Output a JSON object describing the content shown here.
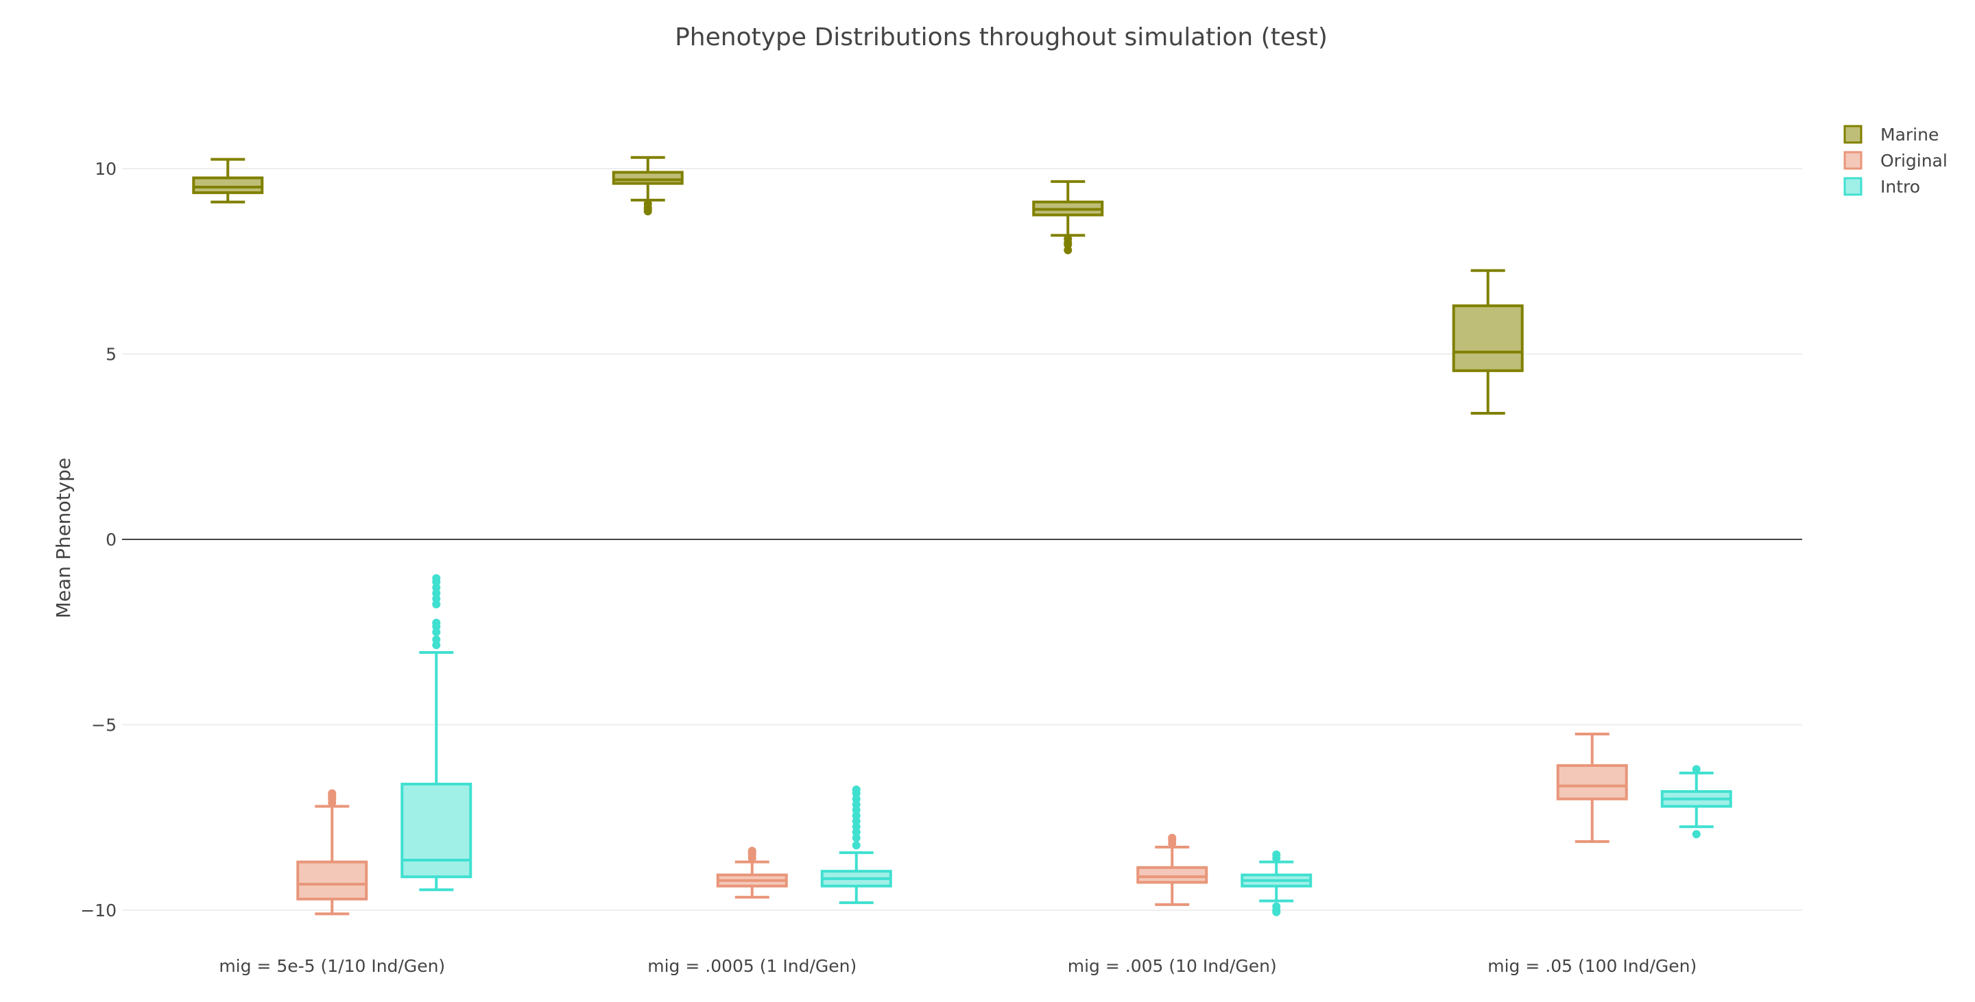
{
  "chart_data": {
    "type": "box",
    "title": "Phenotype Distributions throughout simulation (test)",
    "xlabel": "",
    "ylabel": "Mean Phenotype",
    "ylim": [
      -11,
      12
    ],
    "yticks": [
      10,
      5,
      0,
      -5,
      -10
    ],
    "ytick_labels": [
      "10",
      "5",
      "0",
      "−5",
      "−10"
    ],
    "grid": true,
    "zero_line": true,
    "legend_position": "top-right",
    "categories": [
      "mig = 5e-5 (1/10 Ind/Gen)",
      "mig = .0005 (1 Ind/Gen)",
      "mig = .005 (10 Ind/Gen)",
      "mig = .05 (100 Ind/Gen)"
    ],
    "series": [
      {
        "name": "Marine",
        "color": "#808000",
        "fill": "#bebe78",
        "boxes": [
          {
            "min": 9.1,
            "q1": 9.35,
            "median": 9.5,
            "q3": 9.75,
            "max": 10.25,
            "outliers": []
          },
          {
            "min": 9.15,
            "q1": 9.6,
            "median": 9.7,
            "q3": 9.9,
            "max": 10.3,
            "outliers": [
              9.05,
              8.95,
              8.9,
              8.85
            ]
          },
          {
            "min": 8.2,
            "q1": 8.75,
            "median": 8.9,
            "q3": 9.1,
            "max": 9.65,
            "outliers": [
              8.1,
              8.0,
              7.95,
              7.8
            ]
          },
          {
            "min": 3.4,
            "q1": 4.55,
            "median": 5.05,
            "q3": 6.3,
            "max": 7.25,
            "outliers": []
          }
        ]
      },
      {
        "name": "Original",
        "color": "#e9967a",
        "fill": "#f4c8b9",
        "boxes": [
          {
            "min": -10.1,
            "q1": -9.7,
            "median": -9.3,
            "q3": -8.7,
            "max": -7.2,
            "outliers": [
              -7.1,
              -7.0,
              -6.95,
              -6.9,
              -6.85
            ]
          },
          {
            "min": -9.65,
            "q1": -9.35,
            "median": -9.2,
            "q3": -9.05,
            "max": -8.7,
            "outliers": [
              -8.6,
              -8.5,
              -8.45,
              -8.4
            ]
          },
          {
            "min": -9.85,
            "q1": -9.25,
            "median": -9.1,
            "q3": -8.85,
            "max": -8.3,
            "outliers": [
              -8.2,
              -8.1,
              -8.05
            ]
          },
          {
            "min": -8.15,
            "q1": -7.0,
            "median": -6.65,
            "q3": -6.1,
            "max": -5.25,
            "outliers": []
          }
        ]
      },
      {
        "name": "Intro",
        "color": "#40e0d0",
        "fill": "#a0f0e8",
        "boxes": [
          {
            "min": -9.45,
            "q1": -9.1,
            "median": -8.65,
            "q3": -6.6,
            "max": -3.05,
            "outliers": [
              -2.85,
              -2.7,
              -2.5,
              -2.35,
              -2.25,
              -1.75,
              -1.6,
              -1.45,
              -1.3,
              -1.15,
              -1.05
            ]
          },
          {
            "min": -9.8,
            "q1": -9.35,
            "median": -9.15,
            "q3": -8.95,
            "max": -8.45,
            "outliers": [
              -8.25,
              -8.05,
              -7.9,
              -7.75,
              -7.6,
              -7.45,
              -7.3,
              -7.15,
              -7.0,
              -6.85,
              -6.75
            ]
          },
          {
            "min": -9.75,
            "q1": -9.35,
            "median": -9.2,
            "q3": -9.05,
            "max": -8.7,
            "outliers": [
              -8.6,
              -8.5,
              -9.9,
              -10.0,
              -10.05
            ]
          },
          {
            "min": -7.75,
            "q1": -7.2,
            "median": -7.0,
            "q3": -6.8,
            "max": -6.3,
            "outliers": [
              -6.2,
              -7.95
            ]
          }
        ]
      }
    ]
  }
}
